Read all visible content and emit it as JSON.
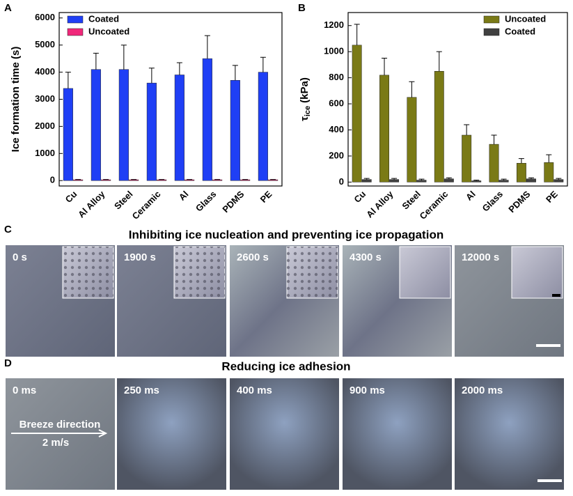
{
  "chart_data": [
    {
      "type": "bar",
      "panel_label": "A",
      "y_label": "Ice formation time (s)",
      "categories": [
        "Cu",
        "Al Alloy",
        "Steel",
        "Ceramic",
        "Al",
        "Glass",
        "PDMS",
        "PE"
      ],
      "series": [
        {
          "name": "Coated",
          "color": "#1f3ff5",
          "values": [
            3400,
            4100,
            4100,
            3600,
            3900,
            4500,
            3700,
            4000
          ],
          "errors": [
            600,
            600,
            900,
            550,
            450,
            850,
            550,
            550
          ]
        },
        {
          "name": "Uncoated",
          "color": "#f0287a",
          "values": [
            30,
            30,
            30,
            30,
            30,
            30,
            30,
            30
          ],
          "errors": [
            10,
            10,
            10,
            10,
            10,
            10,
            10,
            10
          ]
        }
      ],
      "ylim": [
        -200,
        6200
      ],
      "yticks": [
        0,
        1000,
        2000,
        3000,
        4000,
        5000,
        6000
      ],
      "legend": "upper left"
    },
    {
      "type": "bar",
      "panel_label": "B",
      "y_label": {
        "symbol": "τ",
        "subscript": "ice",
        "unit": "(kPa)"
      },
      "categories": [
        "Cu",
        "Al Alloy",
        "Steel",
        "Ceramic",
        "Al",
        "Glass",
        "PDMS",
        "PE"
      ],
      "series": [
        {
          "name": "Uncoated",
          "color": "#7a7a16",
          "values": [
            1050,
            820,
            650,
            850,
            360,
            290,
            145,
            150
          ],
          "errors": [
            160,
            130,
            120,
            150,
            80,
            70,
            35,
            60
          ]
        },
        {
          "name": "Coated",
          "color": "#404040",
          "values": [
            20,
            20,
            15,
            25,
            10,
            15,
            25,
            20
          ],
          "errors": [
            8,
            8,
            8,
            8,
            5,
            8,
            8,
            8
          ]
        }
      ],
      "ylim": [
        -30,
        1300
      ],
      "yticks": [
        0,
        200,
        400,
        600,
        800,
        1000,
        1200
      ],
      "legend": "upper right"
    }
  ],
  "panel_c": {
    "label": "C",
    "title": "Inhibiting ice nucleation and preventing ice propagation",
    "frames": [
      "0 s",
      "1900 s",
      "2600 s",
      "4300 s",
      "12000 s"
    ]
  },
  "panel_d": {
    "label": "D",
    "title": "Reducing ice adhesion",
    "frames": [
      "0 ms",
      "250 ms",
      "400 ms",
      "900 ms",
      "2000 ms"
    ],
    "annotation": "Breeze direction",
    "speed": "2 m/s"
  }
}
